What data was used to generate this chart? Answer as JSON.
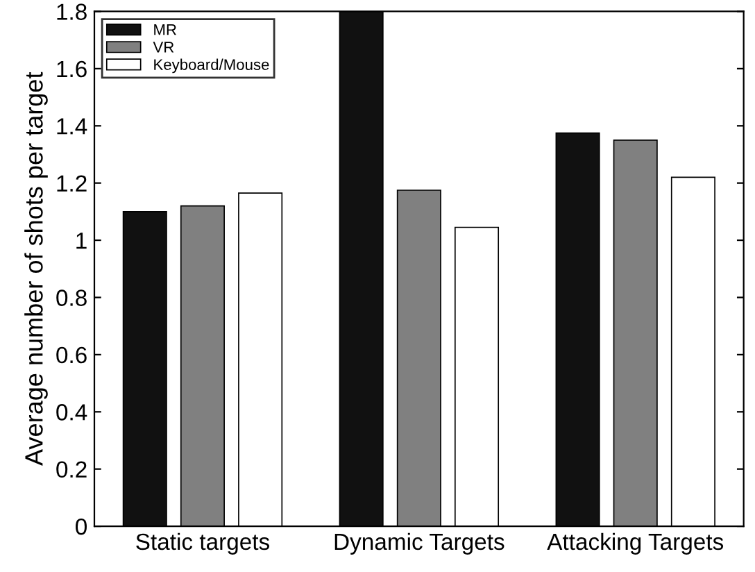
{
  "chart_data": {
    "type": "bar",
    "ylabel": "Average number of shots per target",
    "categories": [
      "Static targets",
      "Dynamic Targets",
      "Attacking Targets"
    ],
    "series": [
      {
        "name": "MR",
        "color": "#111111",
        "values": [
          1.1,
          1.8,
          1.375
        ]
      },
      {
        "name": "VR",
        "color": "#808080",
        "values": [
          1.12,
          1.175,
          1.35
        ]
      },
      {
        "name": "Keyboard/Mouse",
        "color": "#ffffff",
        "values": [
          1.165,
          1.045,
          1.22
        ]
      }
    ],
    "ylim": [
      0,
      1.8
    ],
    "yticks": [
      0,
      0.2,
      0.4,
      0.6,
      0.8,
      1,
      1.2,
      1.4,
      1.6,
      1.8
    ],
    "legend": "top left",
    "grid": false
  }
}
